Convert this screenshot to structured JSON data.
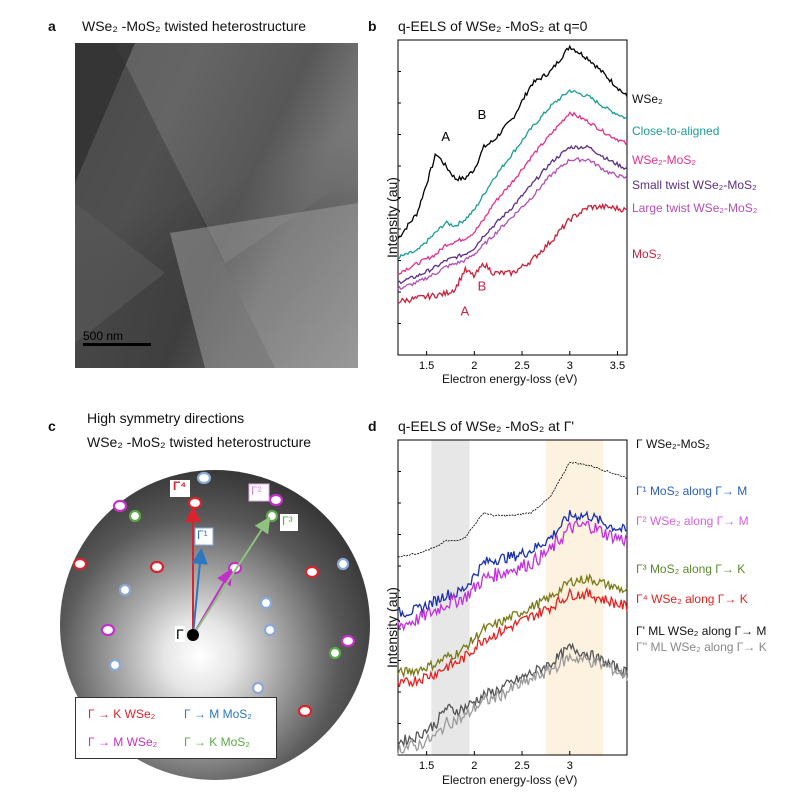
{
  "panel_a": {
    "letter": "a",
    "title": "WSe₂ -MoS₂ twisted heterostructure",
    "scalebar_label": "500 nm"
  },
  "panel_b": {
    "letter": "b",
    "title": "q-EELS of WSe₂ -MoS₂ at q=0",
    "ylabel": "Intensity (au)",
    "xlabel": "Electron energy-loss (eV)",
    "peak_labels": [
      "A",
      "B",
      "A",
      "B"
    ],
    "colors": {
      "wse2": "#000000",
      "close": "#1a9e96",
      "hetero": "#e8308b",
      "small": "#5a2f86",
      "large": "#b44fb2",
      "mos2": "#cc1f3a"
    }
  },
  "panel_c": {
    "letter": "c",
    "title_line1": "High symmetry directions",
    "title_line2": "WSe₂ -MoS₂ twisted heterostructure",
    "gamma": "Γ",
    "vector_labels": [
      "Γ⁴",
      "Γ²",
      "Γ¹",
      "Γ³"
    ],
    "legend": [
      {
        "text": "Γ → K WSe₂",
        "color": "#d9232e"
      },
      {
        "text": "Γ → M MoS₂",
        "color": "#2b78c0"
      },
      {
        "text": "Γ → M WSe₂",
        "color": "#c42fc9"
      },
      {
        "text": "Γ → K MoS₂",
        "color": "#5ba84a"
      }
    ]
  },
  "panel_d": {
    "letter": "d",
    "title": "q-EELS of WSe₂ -MoS₂ at Γ'",
    "ylabel": "Intensity (au)",
    "xlabel": "Electron energy-loss (eV)",
    "colors": {
      "hetero": "#000000",
      "mos2_m": "#1a2fb0",
      "wse2_m": "#c42fe0",
      "mos2_k": "#7a7a16",
      "wse2_k": "#e8201e",
      "ml_m": "#555555",
      "ml_k": "#9a9a9a"
    }
  },
  "chart_data": [
    {
      "type": "line",
      "title": "q-EELS of WSe₂ -MoS₂ at q=0",
      "xlabel": "Electron energy-loss (eV)",
      "ylabel": "Intensity (au)",
      "xlim": [
        1.2,
        3.6
      ],
      "ylim": [
        0,
        10
      ],
      "xticks": [
        "1.5",
        "2",
        "2.5",
        "3",
        "3.5"
      ],
      "xtick_values": [
        1.5,
        2.0,
        2.5,
        3.0,
        3.5
      ],
      "x": [
        1.2,
        1.4,
        1.6,
        1.7,
        1.8,
        1.9,
        2.0,
        2.1,
        2.2,
        2.4,
        2.6,
        2.8,
        3.0,
        3.2,
        3.4,
        3.6
      ],
      "series": [
        {
          "name": "WSe₂",
          "values": [
            3.7,
            4.5,
            6.4,
            6.0,
            5.6,
            5.6,
            5.9,
            6.6,
            6.8,
            7.5,
            8.6,
            9.0,
            9.8,
            9.4,
            8.8,
            8.2
          ]
        },
        {
          "name": "Close-to-aligned",
          "values": [
            3.1,
            3.3,
            3.9,
            4.2,
            4.1,
            4.3,
            4.6,
            5.1,
            5.6,
            6.4,
            7.2,
            7.9,
            8.4,
            8.2,
            7.8,
            7.5
          ]
        },
        {
          "name": "WSe₂-MoS₂",
          "values": [
            2.6,
            2.9,
            3.2,
            3.5,
            3.6,
            3.7,
            3.9,
            4.3,
            4.8,
            5.5,
            6.3,
            7.0,
            7.7,
            7.4,
            7.0,
            6.7
          ]
        },
        {
          "name": "Small  twist  WSe₂-MoS₂",
          "values": [
            2.3,
            2.5,
            2.8,
            3.0,
            3.1,
            3.2,
            3.4,
            3.8,
            4.1,
            4.7,
            5.4,
            6.1,
            6.6,
            6.6,
            6.2,
            5.9
          ]
        },
        {
          "name": "Large twist WSe₂-MoS₂",
          "values": [
            2.1,
            2.3,
            2.6,
            2.8,
            2.9,
            3.0,
            3.2,
            3.5,
            3.8,
            4.4,
            5.0,
            5.7,
            6.2,
            6.2,
            5.8,
            5.6
          ]
        },
        {
          "name": "MoS₂",
          "values": [
            1.7,
            1.8,
            1.9,
            1.95,
            2.1,
            2.7,
            2.5,
            2.9,
            2.6,
            2.6,
            3.0,
            3.6,
            4.3,
            4.7,
            4.7,
            4.6
          ]
        }
      ]
    },
    {
      "type": "line",
      "title": "q-EELS of WSe₂ -MoS₂ at Γ'",
      "xlabel": "Electron energy-loss (eV)",
      "ylabel": "Intensity (au)",
      "xlim": [
        1.2,
        3.6
      ],
      "ylim": [
        0,
        10
      ],
      "xticks": [
        "1.5",
        "2",
        "2.5",
        "3"
      ],
      "xtick_values": [
        1.5,
        2.0,
        2.5,
        3.0
      ],
      "shaded_ranges": [
        [
          1.55,
          1.95
        ],
        [
          2.75,
          3.35
        ]
      ],
      "x": [
        1.2,
        1.4,
        1.6,
        1.7,
        1.8,
        1.9,
        2.0,
        2.1,
        2.2,
        2.4,
        2.6,
        2.8,
        3.0,
        3.2,
        3.4,
        3.6
      ],
      "series": [
        {
          "name": "Γ WSe₂-MoS₂",
          "values": [
            6.3,
            6.4,
            6.6,
            6.8,
            6.8,
            6.9,
            7.3,
            7.7,
            7.6,
            7.6,
            7.7,
            8.2,
            9.3,
            9.2,
            9.0,
            8.8
          ]
        },
        {
          "name": "Γ¹ MoS₂ along Γ→ M",
          "values": [
            4.5,
            4.6,
            4.9,
            5.1,
            5.1,
            5.3,
            5.7,
            6.1,
            6.2,
            6.3,
            6.5,
            6.9,
            7.6,
            7.6,
            7.3,
            7.1
          ]
        },
        {
          "name": "Γ² WSe₂ along Γ→ M",
          "values": [
            4.1,
            4.3,
            4.6,
            4.8,
            4.9,
            5.0,
            5.3,
            5.6,
            5.7,
            5.9,
            6.1,
            6.5,
            7.2,
            7.3,
            7.0,
            6.8
          ]
        },
        {
          "name": "Γ³ MoS₂ along Γ→ K",
          "values": [
            2.6,
            2.7,
            2.9,
            3.1,
            3.2,
            3.4,
            3.7,
            4.0,
            4.1,
            4.4,
            4.7,
            5.0,
            5.5,
            5.6,
            5.4,
            5.2
          ]
        },
        {
          "name": "Γ⁴ WSe₂ along Γ→ K",
          "values": [
            2.2,
            2.4,
            2.6,
            2.8,
            2.9,
            3.1,
            3.4,
            3.7,
            3.8,
            4.1,
            4.4,
            4.7,
            5.1,
            5.1,
            4.9,
            4.7
          ]
        },
        {
          "name": "Γ' ML WSe₂ along Γ→ M",
          "values": [
            0.4,
            0.6,
            1.0,
            1.5,
            1.4,
            1.5,
            1.7,
            1.9,
            2.0,
            2.3,
            2.6,
            2.9,
            3.4,
            3.2,
            2.9,
            2.6
          ]
        },
        {
          "name": "Γ'' ML WSe₂ along Γ→ K",
          "values": [
            0.2,
            0.3,
            0.6,
            1.0,
            1.1,
            1.2,
            1.5,
            1.7,
            1.8,
            2.1,
            2.4,
            2.7,
            3.1,
            3.0,
            2.8,
            2.5
          ]
        }
      ]
    }
  ]
}
